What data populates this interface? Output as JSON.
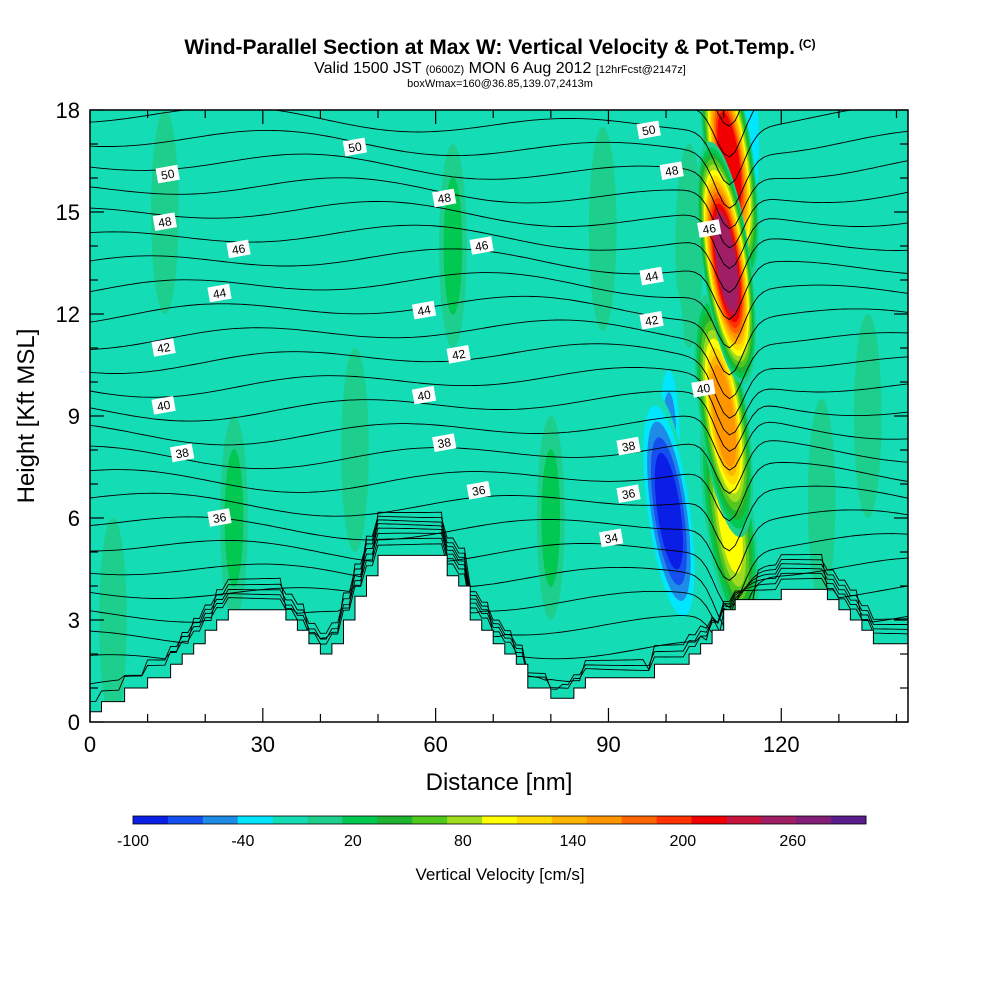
{
  "header": {
    "title": "Wind-Parallel Section at Max W: Vertical Velocity & Pot.Temp.",
    "title_mark": "(C)",
    "valid_prefix": "Valid 1500 JST",
    "valid_utc": "(0600Z)",
    "valid_date": "MON 6 Aug 2012",
    "forecast": "[12hrFcst@2147z]",
    "box_info": "boxWmax=160@36.85,139.07,2413m"
  },
  "chart_data": {
    "type": "heatmap",
    "title": "Wind-Parallel Section at Max W: Vertical Velocity & Pot.Temp.",
    "xlabel": "Distance [nm]",
    "ylabel": "Height [Kft MSL]",
    "xlim": [
      0,
      142
    ],
    "ylim": [
      0,
      18
    ],
    "x_ticks": [
      0,
      30,
      60,
      90,
      120
    ],
    "y_ticks": [
      0,
      3,
      6,
      9,
      12,
      15,
      18
    ],
    "colorbar": {
      "title": "Vertical Velocity [cm/s]",
      "min": -100,
      "max": 280,
      "step": 20,
      "tick_labels": [
        "-100",
        "-40",
        "20",
        "80",
        "140",
        "200",
        "260"
      ],
      "tick_values": [
        -100,
        -40,
        20,
        80,
        140,
        200,
        260
      ],
      "colors": [
        "#0a1ee6",
        "#1450f0",
        "#1e8ce6",
        "#00e6ff",
        "#14dcb4",
        "#1ece8c",
        "#00c850",
        "#1eb432",
        "#50c81e",
        "#a0dc1e",
        "#ffff00",
        "#ffdc00",
        "#ffb400",
        "#ff9600",
        "#ff6400",
        "#ff3200",
        "#f00000",
        "#c8143c",
        "#a01e64",
        "#821e78",
        "#5a1e8c"
      ]
    },
    "terrain_profile": {
      "x": [
        0,
        2,
        4,
        6,
        8,
        10,
        12,
        14,
        16,
        18,
        20,
        22,
        24,
        26,
        28,
        30,
        32,
        34,
        36,
        38,
        40,
        42,
        44,
        46,
        48,
        50,
        52,
        54,
        56,
        58,
        60,
        62,
        64,
        66,
        68,
        70,
        72,
        74,
        76,
        78,
        80,
        82,
        84,
        86,
        88,
        90,
        92,
        94,
        96,
        98,
        100,
        102,
        104,
        106,
        108,
        110,
        112,
        114,
        116,
        118,
        120,
        122,
        124,
        126,
        128,
        130,
        132,
        134,
        136,
        138,
        140,
        142
      ],
      "height_kft": [
        0.3,
        0.6,
        0.6,
        1.0,
        1.0,
        1.3,
        1.3,
        1.7,
        2.0,
        2.3,
        2.7,
        3.0,
        3.3,
        3.3,
        3.3,
        3.3,
        3.3,
        3.0,
        2.7,
        2.3,
        2.0,
        2.3,
        3.0,
        3.7,
        4.3,
        4.9,
        4.9,
        4.9,
        4.9,
        4.9,
        4.9,
        4.3,
        4.0,
        3.0,
        2.7,
        2.3,
        2.0,
        1.7,
        1.0,
        1.0,
        0.7,
        0.7,
        1.0,
        1.3,
        1.3,
        1.3,
        1.3,
        1.3,
        1.3,
        1.7,
        1.7,
        1.7,
        2.0,
        2.3,
        2.7,
        3.3,
        3.6,
        3.6,
        3.6,
        3.6,
        3.9,
        3.9,
        3.9,
        3.9,
        3.6,
        3.3,
        3.0,
        2.7,
        2.3,
        2.3,
        2.3,
        2.3
      ]
    },
    "w_features": [
      {
        "x": 110.5,
        "y": 13.5,
        "w": 280
      },
      {
        "x": 111.0,
        "y": 16.5,
        "w": 230
      },
      {
        "x": 110.0,
        "y": 9.0,
        "w": 180
      },
      {
        "x": 111.0,
        "y": 6.0,
        "w": 110
      },
      {
        "x": 112.5,
        "y": 4.2,
        "w": 80
      },
      {
        "x": 100.5,
        "y": 6.2,
        "w": -100
      },
      {
        "x": 100.5,
        "y": 8.0,
        "w": -60
      },
      {
        "x": 101.0,
        "y": 10.0,
        "w": -20
      },
      {
        "x": 114.5,
        "y": 17.0,
        "w": -40
      },
      {
        "x": 99.5,
        "y": 3.8,
        "w": -20
      },
      {
        "x": 13.0,
        "y": 15.0,
        "w": 20
      },
      {
        "x": 12.0,
        "y": 8.0,
        "w": -10
      },
      {
        "x": 25.0,
        "y": 6.0,
        "w": 30
      },
      {
        "x": 31.0,
        "y": 5.5,
        "w": -10
      },
      {
        "x": 46.0,
        "y": 8.0,
        "w": 10
      },
      {
        "x": 36.0,
        "y": 14.0,
        "w": -10
      },
      {
        "x": 63.0,
        "y": 14.0,
        "w": 30
      },
      {
        "x": 58.0,
        "y": 8.5,
        "w": -15
      },
      {
        "x": 80.0,
        "y": 6.0,
        "w": 30
      },
      {
        "x": 89.0,
        "y": 14.5,
        "w": 20
      },
      {
        "x": 76.0,
        "y": 14.0,
        "w": -15
      },
      {
        "x": 135.0,
        "y": 9.0,
        "w": 10
      },
      {
        "x": 127.0,
        "y": 6.5,
        "w": 20
      },
      {
        "x": 4.0,
        "y": 3.0,
        "w": 20
      },
      {
        "x": 104.0,
        "y": 14.0,
        "w": 10
      }
    ],
    "theta_labels": [
      {
        "text": "50",
        "x": 13.5,
        "y": 16.1
      },
      {
        "text": "48",
        "x": 13.0,
        "y": 14.7
      },
      {
        "text": "46",
        "x": 25.8,
        "y": 13.9
      },
      {
        "text": "44",
        "x": 22.5,
        "y": 12.6
      },
      {
        "text": "42",
        "x": 12.8,
        "y": 11.0
      },
      {
        "text": "40",
        "x": 12.8,
        "y": 9.3
      },
      {
        "text": "38",
        "x": 16.0,
        "y": 7.9
      },
      {
        "text": "36",
        "x": 22.5,
        "y": 6.0
      },
      {
        "text": "50",
        "x": 46.0,
        "y": 16.9
      },
      {
        "text": "48",
        "x": 61.5,
        "y": 15.4
      },
      {
        "text": "46",
        "x": 68.0,
        "y": 14.0
      },
      {
        "text": "44",
        "x": 58.0,
        "y": 12.1
      },
      {
        "text": "42",
        "x": 64.0,
        "y": 10.8
      },
      {
        "text": "40",
        "x": 58.0,
        "y": 9.6
      },
      {
        "text": "38",
        "x": 61.5,
        "y": 8.2
      },
      {
        "text": "36",
        "x": 67.5,
        "y": 6.8
      },
      {
        "text": "50",
        "x": 97.0,
        "y": 17.4
      },
      {
        "text": "48",
        "x": 101.0,
        "y": 16.2
      },
      {
        "text": "46",
        "x": 107.5,
        "y": 14.5
      },
      {
        "text": "44",
        "x": 97.5,
        "y": 13.1
      },
      {
        "text": "42",
        "x": 97.5,
        "y": 11.8
      },
      {
        "text": "40",
        "x": 106.5,
        "y": 9.8
      },
      {
        "text": "38",
        "x": 93.5,
        "y": 8.1
      },
      {
        "text": "36",
        "x": 93.5,
        "y": 6.7
      },
      {
        "text": "34",
        "x": 90.5,
        "y": 5.4
      }
    ]
  }
}
